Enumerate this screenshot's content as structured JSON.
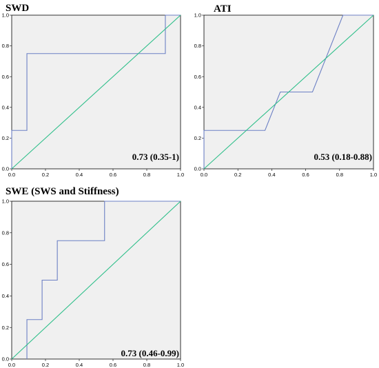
{
  "chart_data": [
    {
      "type": "line",
      "title": "SWD",
      "annotation": "0.73 (0.35-1)",
      "xlim": [
        0,
        1
      ],
      "ylim": [
        0,
        1
      ],
      "xticks": [
        "0.0",
        "0.2",
        "0.4",
        "0.6",
        "0.8",
        "1.0"
      ],
      "yticks": [
        "0.0",
        "0.2",
        "0.4",
        "0.6",
        "0.8",
        "1.0"
      ],
      "grid": false,
      "series": [
        {
          "role": "roc",
          "color": "#6b7fc4",
          "x": [
            0,
            0,
            0.09,
            0.09,
            0.91,
            0.91,
            1
          ],
          "y": [
            0,
            0.25,
            0.25,
            0.75,
            0.75,
            1,
            1
          ]
        },
        {
          "role": "reference",
          "color": "#2fbf8a",
          "x": [
            0,
            1
          ],
          "y": [
            0,
            1
          ]
        }
      ]
    },
    {
      "type": "line",
      "title": "ATI",
      "annotation": "0.53 (0.18-0.88)",
      "xlim": [
        0,
        1
      ],
      "ylim": [
        0,
        1
      ],
      "xticks": [
        "0.0",
        "0.2",
        "0.4",
        "0.6",
        "0.8",
        "1.0"
      ],
      "yticks": [
        "0.0",
        "0.2",
        "0.4",
        "0.6",
        "0.8",
        "1.0"
      ],
      "grid": false,
      "series": [
        {
          "role": "roc",
          "color": "#6b7fc4",
          "x": [
            0,
            0,
            0.36,
            0.45,
            0.64,
            0.82,
            1
          ],
          "y": [
            0,
            0.25,
            0.25,
            0.5,
            0.5,
            1,
            1
          ]
        },
        {
          "role": "reference",
          "color": "#2fbf8a",
          "x": [
            0,
            1
          ],
          "y": [
            0,
            1
          ]
        }
      ]
    },
    {
      "type": "line",
      "title": "SWE (SWS and Stiffness)",
      "annotation": "0.73 (0.46-0.99)",
      "xlim": [
        0,
        1
      ],
      "ylim": [
        0,
        1
      ],
      "xticks": [
        "0.0",
        "0.2",
        "0.4",
        "0.6",
        "0.8",
        "1.0"
      ],
      "yticks": [
        "0.0",
        "0.2",
        "0.4",
        "0.6",
        "0.8",
        "1.0"
      ],
      "grid": false,
      "series": [
        {
          "role": "roc",
          "color": "#6b7fc4",
          "x": [
            0.09,
            0.09,
            0.18,
            0.18,
            0.27,
            0.27,
            0.55,
            0.55,
            1
          ],
          "y": [
            0,
            0.25,
            0.25,
            0.5,
            0.5,
            0.75,
            0.75,
            1,
            1
          ]
        },
        {
          "role": "reference",
          "color": "#2fbf8a",
          "x": [
            0,
            1
          ],
          "y": [
            0,
            1
          ]
        }
      ]
    }
  ],
  "colors": {
    "plot_background": "#f0f0f0",
    "roc_line": "#6b7fc4",
    "reference_line": "#2fbf8a"
  }
}
